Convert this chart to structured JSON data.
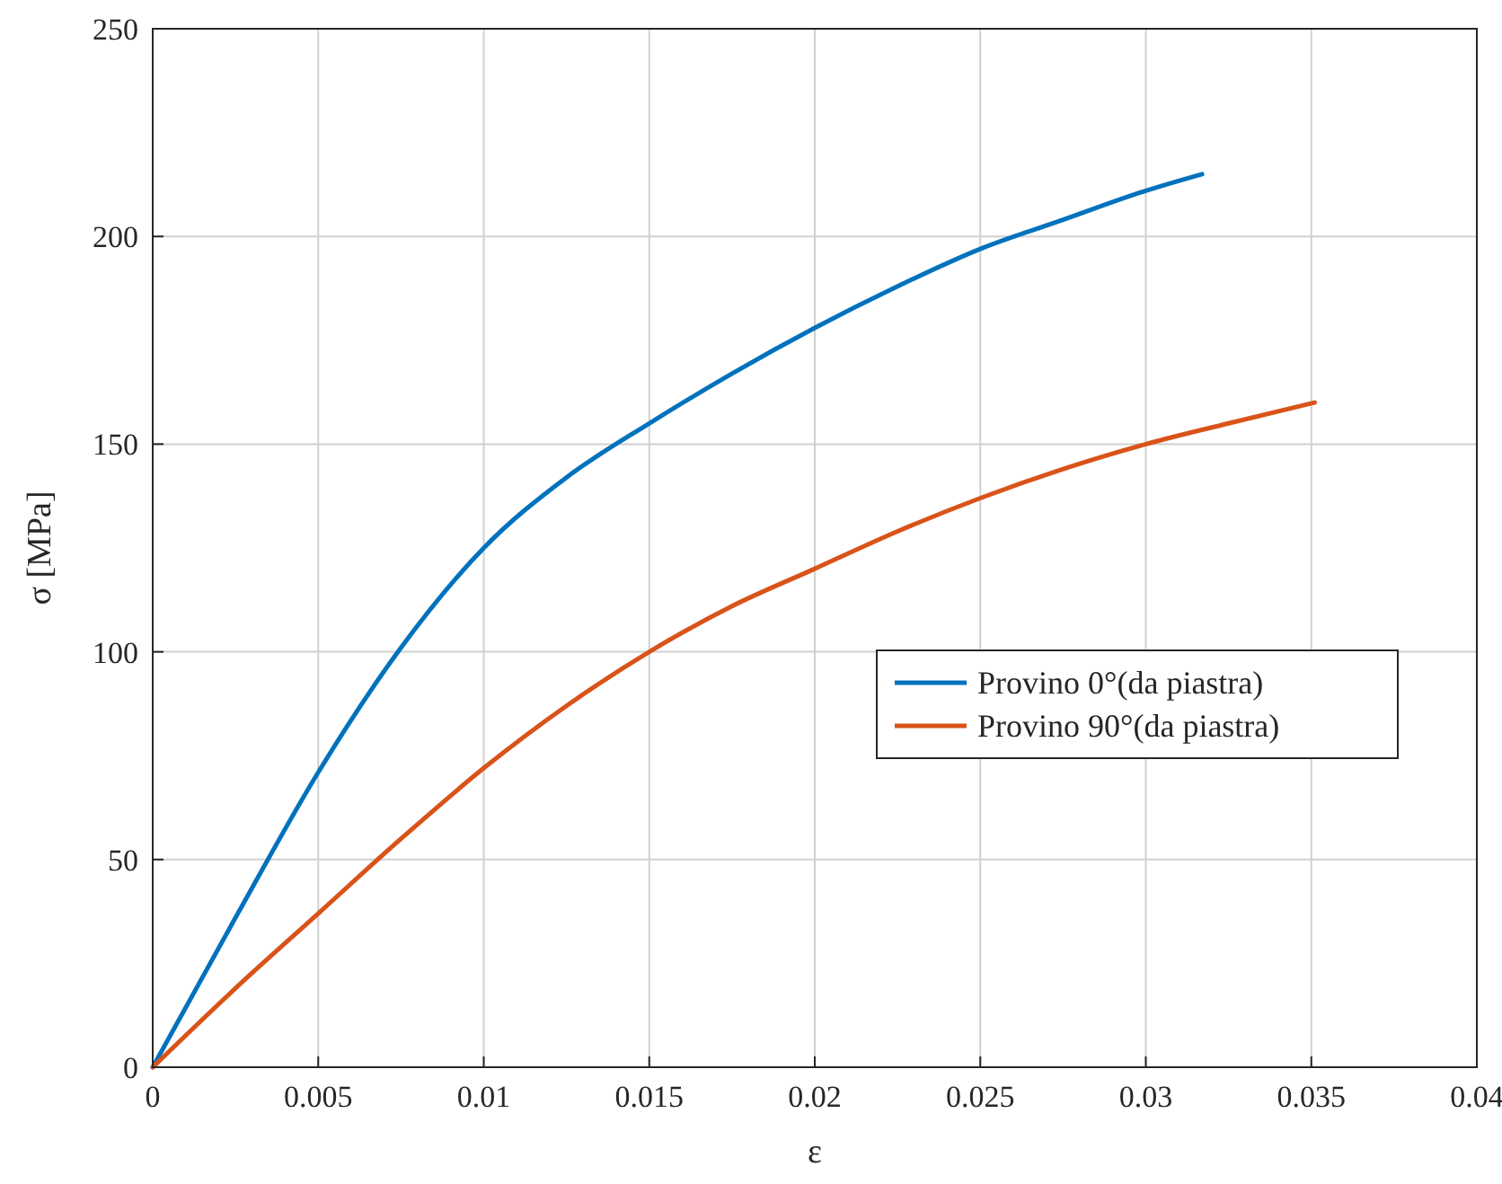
{
  "chart_data": {
    "type": "line",
    "xlabel": "ε",
    "ylabel": "σ [MPa]",
    "xlim": [
      0,
      0.04
    ],
    "ylim": [
      0,
      250
    ],
    "xticks": [
      0,
      0.005,
      0.01,
      0.015,
      0.02,
      0.025,
      0.03,
      0.035,
      0.04
    ],
    "yticks": [
      0,
      50,
      100,
      150,
      200,
      250
    ],
    "grid": true,
    "legend": "right",
    "line_style": "solid",
    "marker": "none",
    "series": [
      {
        "name": "Provino 0°(da piastra)",
        "color": "#0072bd",
        "x": [
          0,
          0.0025,
          0.005,
          0.0075,
          0.01,
          0.0125,
          0.015,
          0.0175,
          0.02,
          0.0225,
          0.025,
          0.0275,
          0.03,
          0.0317
        ],
        "values": [
          0,
          36,
          71,
          101,
          125,
          142,
          155,
          167,
          178,
          188,
          197,
          204,
          211,
          215
        ]
      },
      {
        "name": "Provino 90°(da piastra)",
        "color": "#d95319",
        "x": [
          0,
          0.0025,
          0.005,
          0.0075,
          0.01,
          0.0125,
          0.015,
          0.0175,
          0.02,
          0.0225,
          0.025,
          0.0275,
          0.03,
          0.0325,
          0.0351
        ],
        "values": [
          0,
          19,
          37,
          55,
          72,
          87,
          100,
          111,
          120,
          129,
          137,
          144,
          150,
          155,
          160
        ]
      }
    ]
  }
}
